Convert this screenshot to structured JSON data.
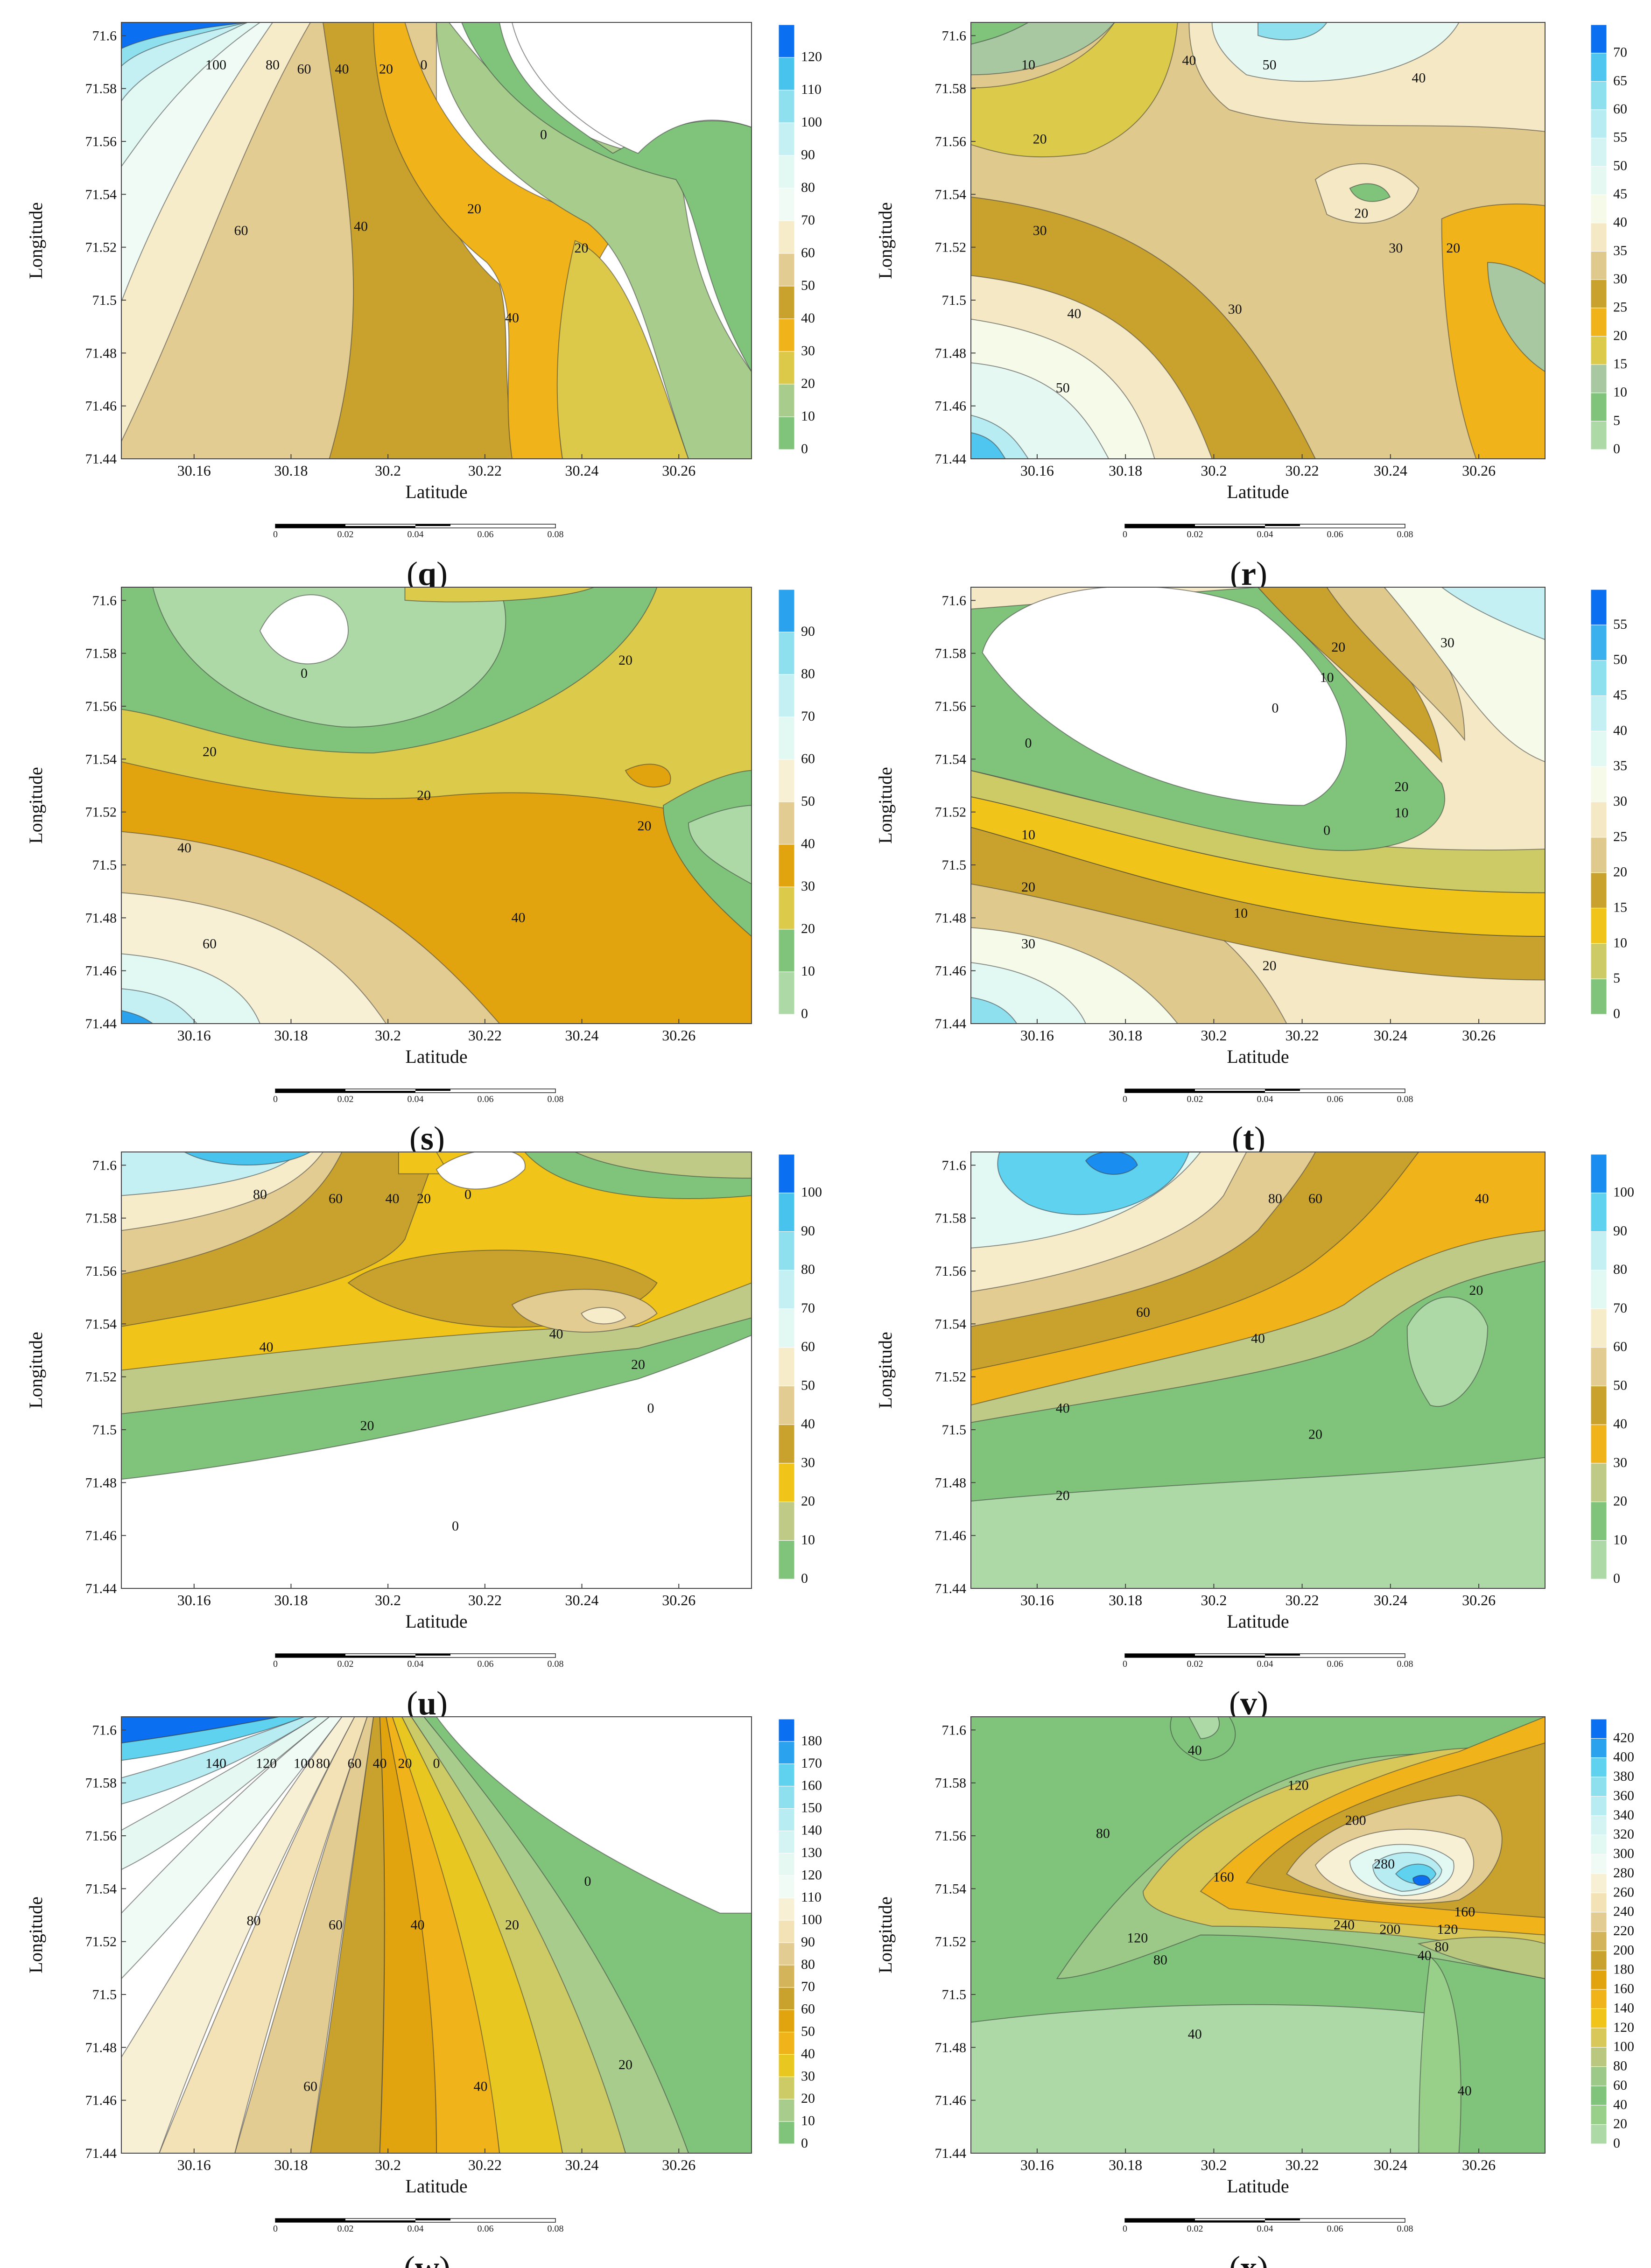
{
  "panels": [
    {
      "id": "q",
      "caption_letter": "q",
      "caption_open": "(",
      "caption_close": ")",
      "xlabel": "Latitude",
      "ylabel": "Longitude",
      "x_ticks": [
        "30.16",
        "30.18",
        "30.2",
        "30.22",
        "30.24",
        "30.26"
      ],
      "y_ticks": [
        "71.6",
        "71.58",
        "71.56",
        "71.54",
        "71.52",
        "71.5",
        "71.48",
        "71.46",
        "71.44"
      ],
      "legend_levels": [
        "0",
        "10",
        "20",
        "30",
        "40",
        "50",
        "60",
        "70",
        "80",
        "90",
        "100",
        "110",
        "120"
      ],
      "legend_colors": [
        "#7fc47a",
        "#a7cc8c",
        "#dcc94a",
        "#f0b319",
        "#c8a22c",
        "#e3cc92",
        "#f7ecca",
        "#f0fbf5",
        "#e2f8f3",
        "#c4f0f3",
        "#8fe0ef",
        "#47c3ee",
        "#0a6ff0"
      ],
      "contour_labels": [
        "100",
        "80",
        "60",
        "40",
        "20",
        "0",
        "0",
        "20",
        "20",
        "40",
        "40",
        "60"
      ],
      "scale_ticks": [
        "0",
        "0.02",
        "0.04",
        "0.06",
        "0.08"
      ]
    },
    {
      "id": "r",
      "caption_letter": "r",
      "caption_open": "(",
      "caption_close": ")",
      "xlabel": "Latitude",
      "ylabel": "Longitude",
      "x_ticks": [
        "30.16",
        "30.18",
        "30.2",
        "30.22",
        "30.24",
        "30.26"
      ],
      "y_ticks": [
        "71.6",
        "71.58",
        "71.56",
        "71.54",
        "71.52",
        "71.5",
        "71.48",
        "71.46",
        "71.44"
      ],
      "legend_levels": [
        "0",
        "5",
        "10",
        "15",
        "20",
        "25",
        "30",
        "35",
        "40",
        "45",
        "50",
        "55",
        "60",
        "65",
        "70"
      ],
      "legend_colors": [
        "#acd9a6",
        "#7fc47a",
        "#a8c8a2",
        "#dcca4a",
        "#f0b319",
        "#c8a22c",
        "#dfc98c",
        "#f5e8c4",
        "#f6fae8",
        "#e6f8f2",
        "#d4f4f4",
        "#b8ecf3",
        "#8fe0ef",
        "#4fc6ef",
        "#0a6ff0"
      ],
      "contour_labels": [
        "10",
        "40",
        "50",
        "40",
        "20",
        "30",
        "20",
        "30",
        "20",
        "30",
        "40",
        "50"
      ],
      "scale_ticks": [
        "0",
        "0.02",
        "0.04",
        "0.06",
        "0.08"
      ]
    },
    {
      "id": "s",
      "caption_letter": "s",
      "caption_open": "(",
      "caption_close": ")",
      "xlabel": "Latitude",
      "ylabel": "Longitude",
      "x_ticks": [
        "30.16",
        "30.18",
        "30.2",
        "30.22",
        "30.24",
        "30.26"
      ],
      "y_ticks": [
        "71.6",
        "71.58",
        "71.56",
        "71.54",
        "71.52",
        "71.5",
        "71.48",
        "71.46",
        "71.44"
      ],
      "legend_levels": [
        "0",
        "10",
        "20",
        "30",
        "40",
        "50",
        "60",
        "70",
        "80",
        "90"
      ],
      "legend_colors": [
        "#acd9a6",
        "#7fc47a",
        "#dcca4a",
        "#e1a30e",
        "#e3cc92",
        "#f7f0d4",
        "#e2f8f3",
        "#c4f0f3",
        "#8fe0ef",
        "#2aa2ee"
      ],
      "contour_labels": [
        "0",
        "20",
        "20",
        "20",
        "20",
        "40",
        "40",
        "60"
      ],
      "scale_ticks": [
        "0",
        "0.02",
        "0.04",
        "0.06",
        "0.08"
      ]
    },
    {
      "id": "t",
      "caption_letter": "t",
      "caption_open": "(",
      "caption_close": ")",
      "xlabel": "Latitude",
      "ylabel": "Longitude",
      "x_ticks": [
        "30.16",
        "30.18",
        "30.2",
        "30.22",
        "30.24",
        "30.26"
      ],
      "y_ticks": [
        "71.6",
        "71.58",
        "71.56",
        "71.54",
        "71.52",
        "71.5",
        "71.48",
        "71.46",
        "71.44"
      ],
      "legend_levels": [
        "0",
        "5",
        "10",
        "15",
        "20",
        "25",
        "30",
        "35",
        "40",
        "45",
        "50",
        "55"
      ],
      "legend_colors": [
        "#7fc47a",
        "#cccb66",
        "#f0c418",
        "#c8a22c",
        "#dfc98c",
        "#f5e8c4",
        "#f6fae8",
        "#e2f8f3",
        "#c4f0f3",
        "#8fe0ef",
        "#3ab0ee",
        "#0a6ff0"
      ],
      "contour_labels": [
        "0",
        "0",
        "0",
        "20",
        "10",
        "30",
        "20",
        "10",
        "10",
        "20",
        "10",
        "30",
        "20"
      ],
      "scale_ticks": [
        "0",
        "0.02",
        "0.04",
        "0.06",
        "0.08"
      ]
    },
    {
      "id": "u",
      "caption_letter": "u",
      "caption_open": "(",
      "caption_close": ")",
      "xlabel": "Latitude",
      "ylabel": "Longitude",
      "x_ticks": [
        "30.16",
        "30.18",
        "30.2",
        "30.22",
        "30.24",
        "30.26"
      ],
      "y_ticks": [
        "71.6",
        "71.58",
        "71.56",
        "71.54",
        "71.52",
        "71.5",
        "71.48",
        "71.46",
        "71.44"
      ],
      "legend_levels": [
        "0",
        "10",
        "20",
        "30",
        "40",
        "50",
        "60",
        "70",
        "80",
        "90",
        "100"
      ],
      "legend_colors": [
        "#7fc47a",
        "#bfca86",
        "#f0c418",
        "#c8a22c",
        "#e3cc92",
        "#f7ecca",
        "#e2f8f3",
        "#c4f0f3",
        "#8fe0ef",
        "#47c3ee",
        "#0a6ff0"
      ],
      "contour_labels": [
        "80",
        "60",
        "40",
        "20",
        "0",
        "40",
        "40",
        "20",
        "0",
        "20",
        "0"
      ],
      "scale_ticks": [
        "0",
        "0.02",
        "0.04",
        "0.06",
        "0.08"
      ]
    },
    {
      "id": "v",
      "caption_letter": "v",
      "caption_open": "(",
      "caption_close": ")",
      "xlabel": "Latitude",
      "ylabel": "Longitude",
      "x_ticks": [
        "30.16",
        "30.18",
        "30.2",
        "30.22",
        "30.24",
        "30.26"
      ],
      "y_ticks": [
        "71.6",
        "71.58",
        "71.56",
        "71.54",
        "71.52",
        "71.5",
        "71.48",
        "71.46",
        "71.44"
      ],
      "legend_levels": [
        "0",
        "10",
        "20",
        "30",
        "40",
        "50",
        "60",
        "70",
        "80",
        "90",
        "100"
      ],
      "legend_colors": [
        "#acd9a6",
        "#7fc47a",
        "#bfca86",
        "#f0b319",
        "#c8a22c",
        "#e3cc92",
        "#f7ecca",
        "#e2f8f3",
        "#c4f0f3",
        "#5fd2ef",
        "#1a8ef0"
      ],
      "contour_labels": [
        "80",
        "60",
        "40",
        "60",
        "40",
        "20",
        "40",
        "20",
        "20"
      ],
      "scale_ticks": [
        "0",
        "0.02",
        "0.04",
        "0.06",
        "0.08"
      ]
    },
    {
      "id": "w",
      "caption_letter": "w",
      "caption_open": "(",
      "caption_close": ")",
      "xlabel": "Latitude",
      "ylabel": "Longitude",
      "x_ticks": [
        "30.16",
        "30.18",
        "30.2",
        "30.22",
        "30.24",
        "30.26"
      ],
      "y_ticks": [
        "71.6",
        "71.58",
        "71.56",
        "71.54",
        "71.52",
        "71.5",
        "71.48",
        "71.46",
        "71.44"
      ],
      "legend_levels": [
        "0",
        "10",
        "20",
        "30",
        "40",
        "50",
        "60",
        "70",
        "80",
        "90",
        "100",
        "110",
        "120",
        "130",
        "140",
        "150",
        "160",
        "170",
        "180"
      ],
      "legend_colors": [
        "#7fc47a",
        "#a7cc8c",
        "#cccb66",
        "#e8c820",
        "#f0b319",
        "#e1a30e",
        "#c8a22c",
        "#d4b45a",
        "#e3cc92",
        "#f3e2b6",
        "#f7f0d4",
        "#f0fbf5",
        "#e6f8f2",
        "#d4f4f4",
        "#b8ecf3",
        "#8fe0ef",
        "#5fd2ef",
        "#2aa2ee",
        "#0a6ff0"
      ],
      "contour_labels": [
        "140",
        "120",
        "100",
        "80",
        "60",
        "40",
        "20",
        "0",
        "0",
        "80",
        "60",
        "40",
        "20",
        "60",
        "40",
        "20"
      ],
      "scale_ticks": [
        "0",
        "0.02",
        "0.04",
        "0.06",
        "0.08"
      ]
    },
    {
      "id": "x",
      "caption_letter": "x",
      "caption_open": "(",
      "caption_close": ")",
      "xlabel": "Latitude",
      "ylabel": "Longitude",
      "x_ticks": [
        "30.16",
        "30.18",
        "30.2",
        "30.22",
        "30.24",
        "30.26"
      ],
      "y_ticks": [
        "71.6",
        "71.58",
        "71.56",
        "71.54",
        "71.52",
        "71.5",
        "71.48",
        "71.46",
        "71.44"
      ],
      "legend_levels": [
        "0",
        "20",
        "40",
        "60",
        "80",
        "100",
        "120",
        "140",
        "160",
        "180",
        "200",
        "220",
        "240",
        "260",
        "280",
        "300",
        "320",
        "340",
        "360",
        "380",
        "400",
        "420"
      ],
      "legend_colors": [
        "#acd9a6",
        "#98d08a",
        "#7fc47a",
        "#9cc888",
        "#b9c87e",
        "#d8c85a",
        "#f0c418",
        "#f0b319",
        "#e1a30e",
        "#c8a22c",
        "#d4b45a",
        "#e3cc92",
        "#f3e2b6",
        "#f7f0d4",
        "#f0fbf5",
        "#e2f8f3",
        "#d4f4f4",
        "#b8ecf3",
        "#8fe0ef",
        "#5fd2ef",
        "#2aa2ee",
        "#0a6ff0"
      ],
      "contour_labels": [
        "40",
        "120",
        "80",
        "200",
        "160",
        "280",
        "120",
        "240",
        "200",
        "160",
        "120",
        "80",
        "40",
        "80",
        "40",
        "40"
      ],
      "scale_ticks": [
        "0",
        "0.02",
        "0.04",
        "0.06",
        "0.08"
      ]
    }
  ],
  "chart_data": [
    {
      "type": "heatmap",
      "panel": "q",
      "title": "",
      "xlabel": "Latitude",
      "ylabel": "Longitude",
      "xlim": [
        30.145,
        30.275
      ],
      "ylim": [
        71.44,
        71.61
      ],
      "legend_range": [
        0,
        120
      ],
      "contour_levels": [
        100,
        80,
        60,
        40,
        20,
        0
      ]
    },
    {
      "type": "heatmap",
      "panel": "r",
      "title": "",
      "xlabel": "Latitude",
      "ylabel": "Longitude",
      "xlim": [
        30.145,
        30.275
      ],
      "ylim": [
        71.44,
        71.61
      ],
      "legend_range": [
        0,
        70
      ],
      "contour_levels": [
        10,
        20,
        30,
        40,
        50
      ]
    },
    {
      "type": "heatmap",
      "panel": "s",
      "title": "",
      "xlabel": "Latitude",
      "ylabel": "Longitude",
      "xlim": [
        30.145,
        30.275
      ],
      "ylim": [
        71.44,
        71.61
      ],
      "legend_range": [
        0,
        90
      ],
      "contour_levels": [
        0,
        20,
        40,
        60
      ]
    },
    {
      "type": "heatmap",
      "panel": "t",
      "title": "",
      "xlabel": "Latitude",
      "ylabel": "Longitude",
      "xlim": [
        30.145,
        30.275
      ],
      "ylim": [
        71.44,
        71.61
      ],
      "legend_range": [
        0,
        55
      ],
      "contour_levels": [
        0,
        10,
        20,
        30
      ]
    },
    {
      "type": "heatmap",
      "panel": "u",
      "title": "",
      "xlabel": "Latitude",
      "ylabel": "Longitude",
      "xlim": [
        30.145,
        30.275
      ],
      "ylim": [
        71.44,
        71.61
      ],
      "legend_range": [
        0,
        100
      ],
      "contour_levels": [
        80,
        60,
        40,
        20,
        0
      ]
    },
    {
      "type": "heatmap",
      "panel": "v",
      "title": "",
      "xlabel": "Latitude",
      "ylabel": "Longitude",
      "xlim": [
        30.145,
        30.275
      ],
      "ylim": [
        71.44,
        71.61
      ],
      "legend_range": [
        0,
        100
      ],
      "contour_levels": [
        80,
        60,
        40,
        20
      ]
    },
    {
      "type": "heatmap",
      "panel": "w",
      "title": "",
      "xlabel": "Latitude",
      "ylabel": "Longitude",
      "xlim": [
        30.145,
        30.275
      ],
      "ylim": [
        71.44,
        71.61
      ],
      "legend_range": [
        0,
        180
      ],
      "contour_levels": [
        140,
        120,
        100,
        80,
        60,
        40,
        20,
        0
      ]
    },
    {
      "type": "heatmap",
      "panel": "x",
      "title": "",
      "xlabel": "Latitude",
      "ylabel": "Longitude",
      "xlim": [
        30.145,
        30.275
      ],
      "ylim": [
        71.44,
        71.61
      ],
      "legend_range": [
        0,
        420
      ],
      "contour_levels": [
        40,
        80,
        120,
        160,
        200,
        240,
        280
      ]
    }
  ]
}
